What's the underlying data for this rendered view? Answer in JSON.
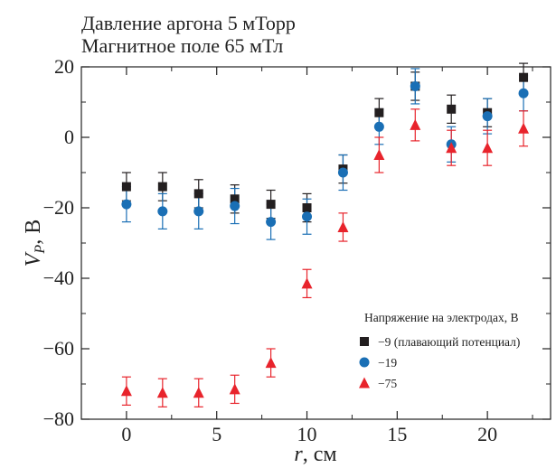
{
  "chart_data": {
    "type": "scatter",
    "title_lines": [
      "Давление аргона 5 мТорр",
      "Магнитное поле 65 мТл"
    ],
    "xlabel": {
      "main": "r",
      "unit": ", см"
    },
    "ylabel": {
      "main": "V",
      "sub": "P",
      "unit": ", В"
    },
    "xlim": [
      -2.5,
      23.5
    ],
    "ylim": [
      -80,
      20
    ],
    "xticks": [
      0,
      5,
      10,
      15,
      20
    ],
    "xtick_labels": [
      "0",
      "5",
      "10",
      "15",
      "20"
    ],
    "yticks": [
      20,
      0,
      -20,
      -40,
      -60,
      -80
    ],
    "ytick_labels": [
      "20",
      "0",
      "−20",
      "−40",
      "−60",
      "−80"
    ],
    "legend": {
      "title": "Напряжение на электродах, В",
      "placement": "right"
    },
    "series": [
      {
        "name": "−9 (плавающий потенциал)",
        "marker": "square",
        "color": "#231f20",
        "x": [
          0,
          2,
          4,
          6,
          8,
          10,
          12,
          14,
          16,
          18,
          20,
          22
        ],
        "y": [
          -14,
          -14,
          -16,
          -17.5,
          -19,
          -20,
          -9,
          7,
          14.5,
          8,
          7,
          17
        ],
        "err": [
          4,
          4,
          4,
          4,
          4,
          4,
          4,
          4,
          4,
          4,
          4,
          4
        ]
      },
      {
        "name": "−19",
        "marker": "circle",
        "color": "#1a6fb5",
        "x": [
          0,
          2,
          4,
          6,
          8,
          10,
          12,
          14,
          16,
          18,
          20,
          22
        ],
        "y": [
          -19,
          -21,
          -21,
          -19.5,
          -24,
          -22.5,
          -10,
          3,
          14.5,
          -2,
          6,
          12.5
        ],
        "err": [
          5,
          5,
          5,
          5,
          5,
          5,
          5,
          5,
          5,
          5,
          5,
          5
        ]
      },
      {
        "name": "−75",
        "marker": "triangle",
        "color": "#e8242c",
        "x": [
          0,
          2,
          4,
          6,
          8,
          10,
          12,
          14,
          16,
          18,
          20,
          22
        ],
        "y": [
          -72,
          -72.5,
          -72.5,
          -71.5,
          -64,
          -41.5,
          -25.5,
          -5,
          3.5,
          -3,
          -3,
          2.5
        ],
        "err": [
          4,
          4,
          4,
          4,
          4,
          4,
          4,
          5,
          4.5,
          5,
          5,
          5
        ]
      }
    ]
  }
}
